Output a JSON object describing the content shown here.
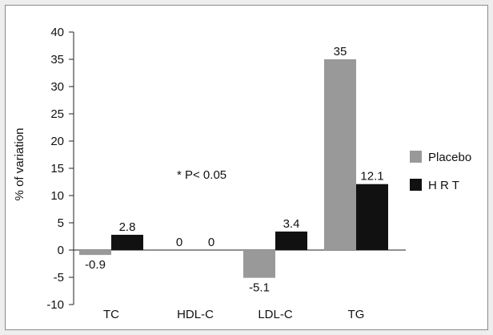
{
  "chart_data": {
    "type": "bar",
    "ylabel": "% of variation",
    "xlabel": "",
    "ylim": [
      -10,
      40
    ],
    "yticks": [
      -10,
      -5,
      0,
      5,
      10,
      15,
      20,
      25,
      30,
      35,
      40
    ],
    "grid": false,
    "legend_position": "right",
    "categories": [
      "TC",
      "HDL-C",
      "LDL-C",
      "TG"
    ],
    "series": [
      {
        "name": "Placebo",
        "values": [
          -0.9,
          0,
          -5.1,
          35
        ],
        "labels": [
          "-0.9",
          "0",
          "-5.1",
          "35"
        ],
        "color": "#999999"
      },
      {
        "name": "H R T",
        "values": [
          2.8,
          0,
          3.4,
          12.1
        ],
        "labels": [
          "2.8",
          "0",
          "3.4",
          "12.1"
        ],
        "color": "#111111"
      }
    ],
    "annotation": "* P< 0.05"
  }
}
